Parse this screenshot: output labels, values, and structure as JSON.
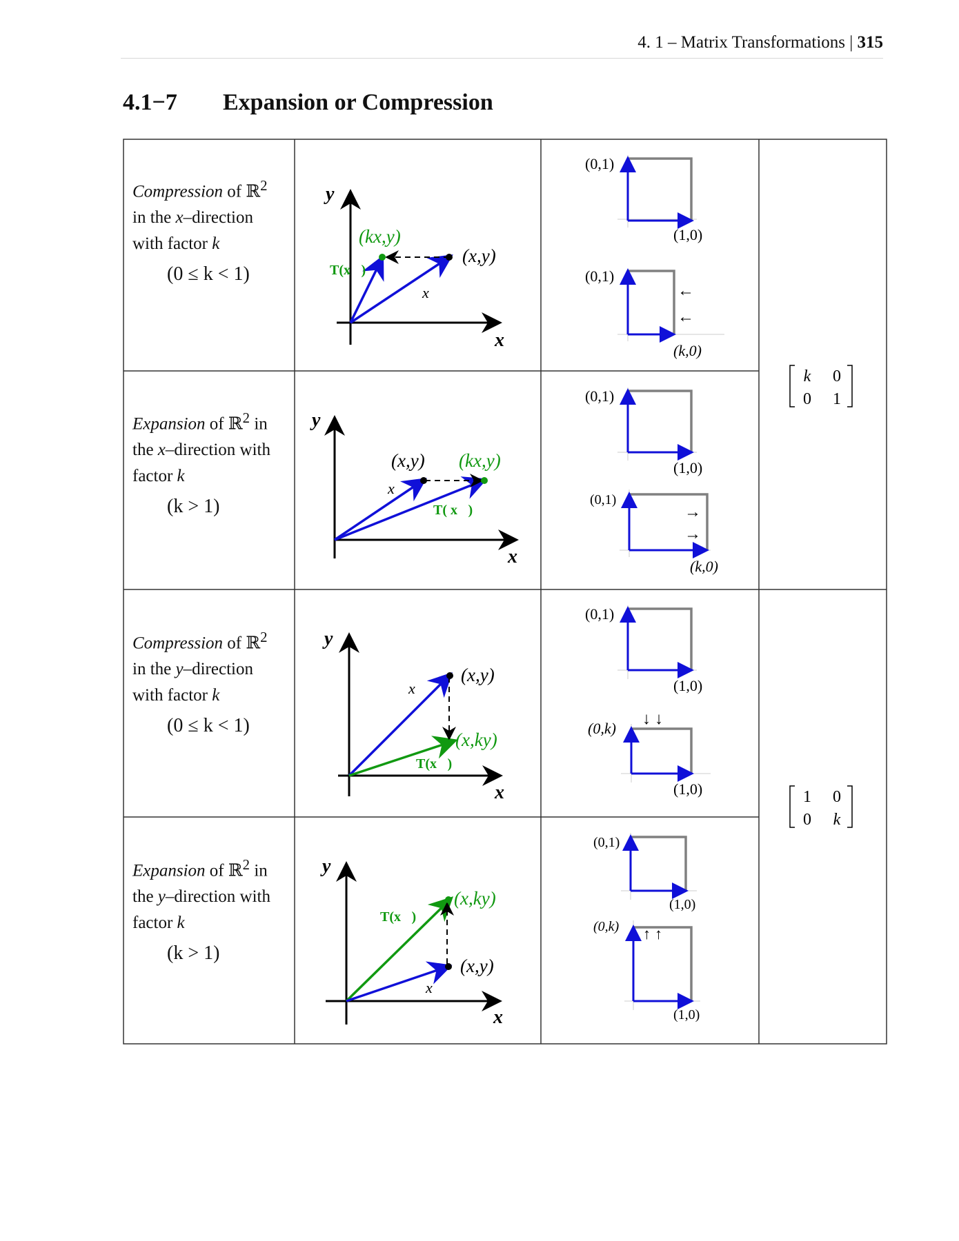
{
  "header": {
    "text": "4. 1 – Matrix Transformations | ",
    "page": "315"
  },
  "section": {
    "number": "4.1−7",
    "title": "Expansion or Compression"
  },
  "colors": {
    "blue": "#1010d8",
    "green": "#119911",
    "gray": "#808080"
  },
  "labels": {
    "y_axis": "y",
    "x_axis": "x",
    "kx_y": "(kx,y)",
    "x_y": "(x,y)",
    "x_ky": "(x,ky)",
    "t_vec": "T(x⃗)",
    "t_vec_spaced": "T( x⃗)",
    "vec_x": "x⃗",
    "p01": "(0,1)",
    "p10": "(1,0)",
    "pk0": "(k,0)",
    "p0k": "(0,k)",
    "arrow_left": "←",
    "arrow_right": "→",
    "arrow_down": "↓↓",
    "arrow_up": "↑↑"
  },
  "rows": [
    {
      "kind": "Compression",
      "of": " of ℝ",
      "sup": "2",
      "l2": "in the ",
      "dir": "x",
      "l2b": "–direction",
      "l3": "with factor ",
      "k": "k",
      "cond": "(0 ≤ k < 1)"
    },
    {
      "kind": "Expansion",
      "of": " of ℝ",
      "sup": "2",
      "l1b": " in",
      "l2": "the ",
      "dir": "x",
      "l2b": "–direction with",
      "l3": "factor ",
      "k": "k",
      "cond": "(k > 1)"
    },
    {
      "kind": "Compression",
      "of": " of ℝ",
      "sup": "2",
      "l2": "in the ",
      "dir": "y",
      "l2b": "–direction",
      "l3": "with factor ",
      "k": "k",
      "cond": "(0 ≤ k < 1)"
    },
    {
      "kind": "Expansion",
      "of": " of ℝ",
      "sup": "2",
      "l1b": " in",
      "l2": "the ",
      "dir": "y",
      "l2b": "–direction with",
      "l3": "factor ",
      "k": "k",
      "cond": "(k > 1)"
    }
  ],
  "matrices": [
    {
      "a": "k",
      "b": "0",
      "c": "0",
      "d": "1"
    },
    {
      "a": "1",
      "b": "0",
      "c": "0",
      "d": "k"
    }
  ]
}
